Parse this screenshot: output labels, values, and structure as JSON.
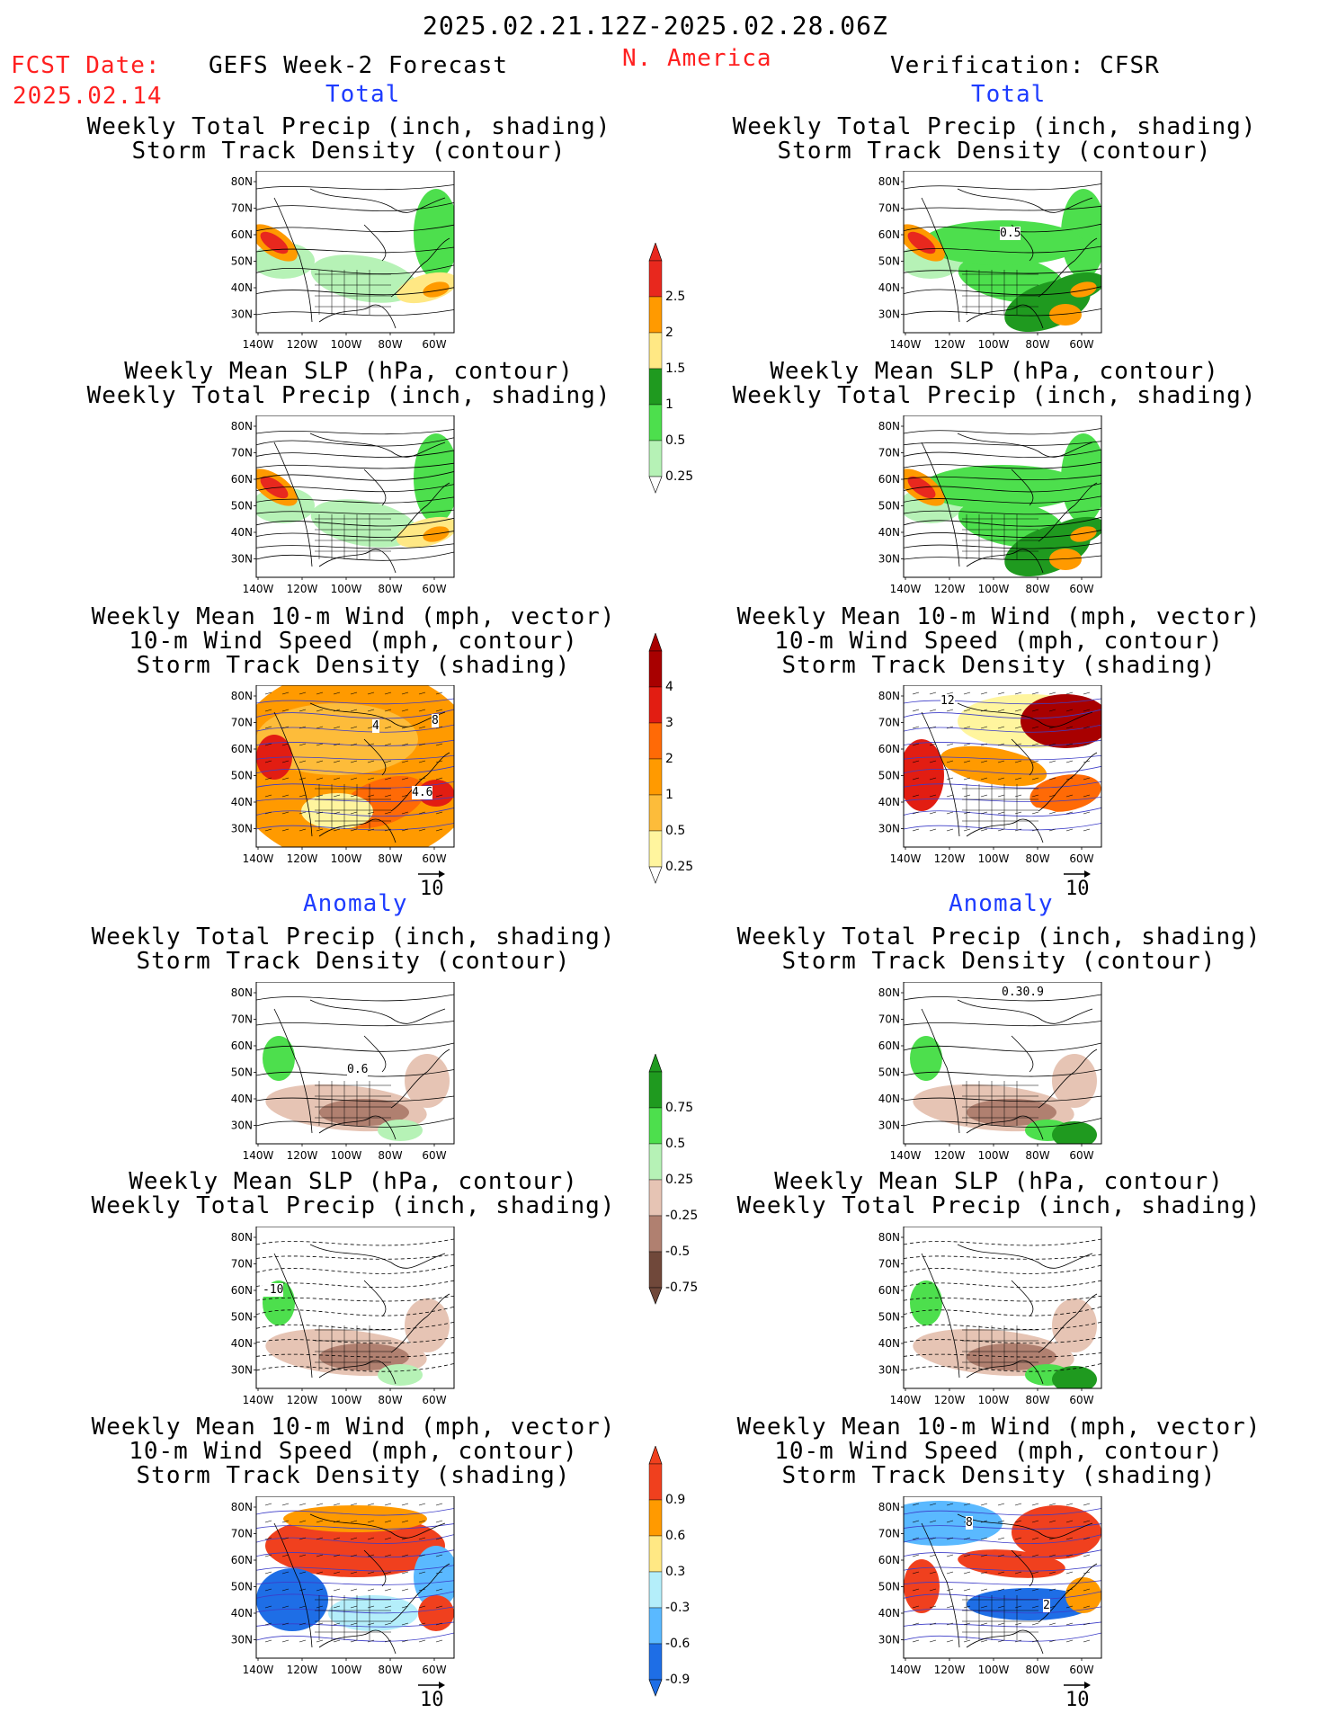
{
  "header": {
    "date_range": "2025.02.21.12Z-2025.02.28.06Z",
    "fcst_label": "FCST Date:",
    "fcst_date": "2025.02.14",
    "left_title": "GEFS Week-2 Forecast",
    "region": "N. America",
    "right_title": "Verification: CFSR"
  },
  "sections": {
    "total": "Total",
    "anomaly": "Anomaly"
  },
  "titles": {
    "precip_track": [
      "Weekly Total Precip (inch, shading)",
      "Storm Track Density (contour)"
    ],
    "slp_precip": [
      "Weekly Mean SLP (hPa, contour)",
      "Weekly Total Precip (inch, shading)"
    ],
    "wind_track": [
      "Weekly Mean 10-m Wind (mph, vector)",
      "10-m Wind Speed (mph, contour)",
      "Storm Track Density (shading)"
    ]
  },
  "axes": {
    "lat_labels": [
      "80N",
      "70N",
      "60N",
      "50N",
      "40N",
      "30N"
    ],
    "lon_labels": [
      "140W",
      "120W",
      "100W",
      "80W",
      "60W"
    ]
  },
  "vector_ref": "10",
  "contour_labels": {
    "p1_right": "0.5",
    "w1_left_a": "4",
    "w1_left_b": "8",
    "w1_left_c": "4.6",
    "w1_right": "12",
    "a1_left": "0.6",
    "a1_right": "0.30.9",
    "s2_left": "-10",
    "w2_right_a": "8",
    "w2_right_b": "2"
  },
  "colorbars": {
    "precip_total": {
      "labels": [
        "2.5",
        "2",
        "1.5",
        "1",
        "0.5",
        "0.25"
      ],
      "colors": [
        "#e8281e",
        "#ff9a00",
        "#ffe884",
        "#1f9a1f",
        "#4ddf4d",
        "#b6f2b6"
      ]
    },
    "track_total": {
      "labels": [
        "4",
        "3",
        "2",
        "1",
        "0.5",
        "0.25"
      ],
      "colors": [
        "#a80000",
        "#e21d12",
        "#ff6a06",
        "#ff9a00",
        "#fdbc3a",
        "#fff59e"
      ]
    },
    "precip_anom": {
      "labels": [
        "0.75",
        "0.5",
        "0.25",
        "-0.25",
        "-0.5",
        "-0.75"
      ],
      "colors": [
        "#1f9a1f",
        "#4ddf4d",
        "#b6f2b6",
        "#e6c4b4",
        "#b08070",
        "#70483a"
      ]
    },
    "track_anom": {
      "labels": [
        "0.9",
        "0.6",
        "0.3",
        "-0.3",
        "-0.6",
        "-0.9"
      ],
      "colors": [
        "#f0401e",
        "#ff9a00",
        "#ffe884",
        "#b4eefa",
        "#5ab9ff",
        "#1e6ee6"
      ]
    }
  }
}
